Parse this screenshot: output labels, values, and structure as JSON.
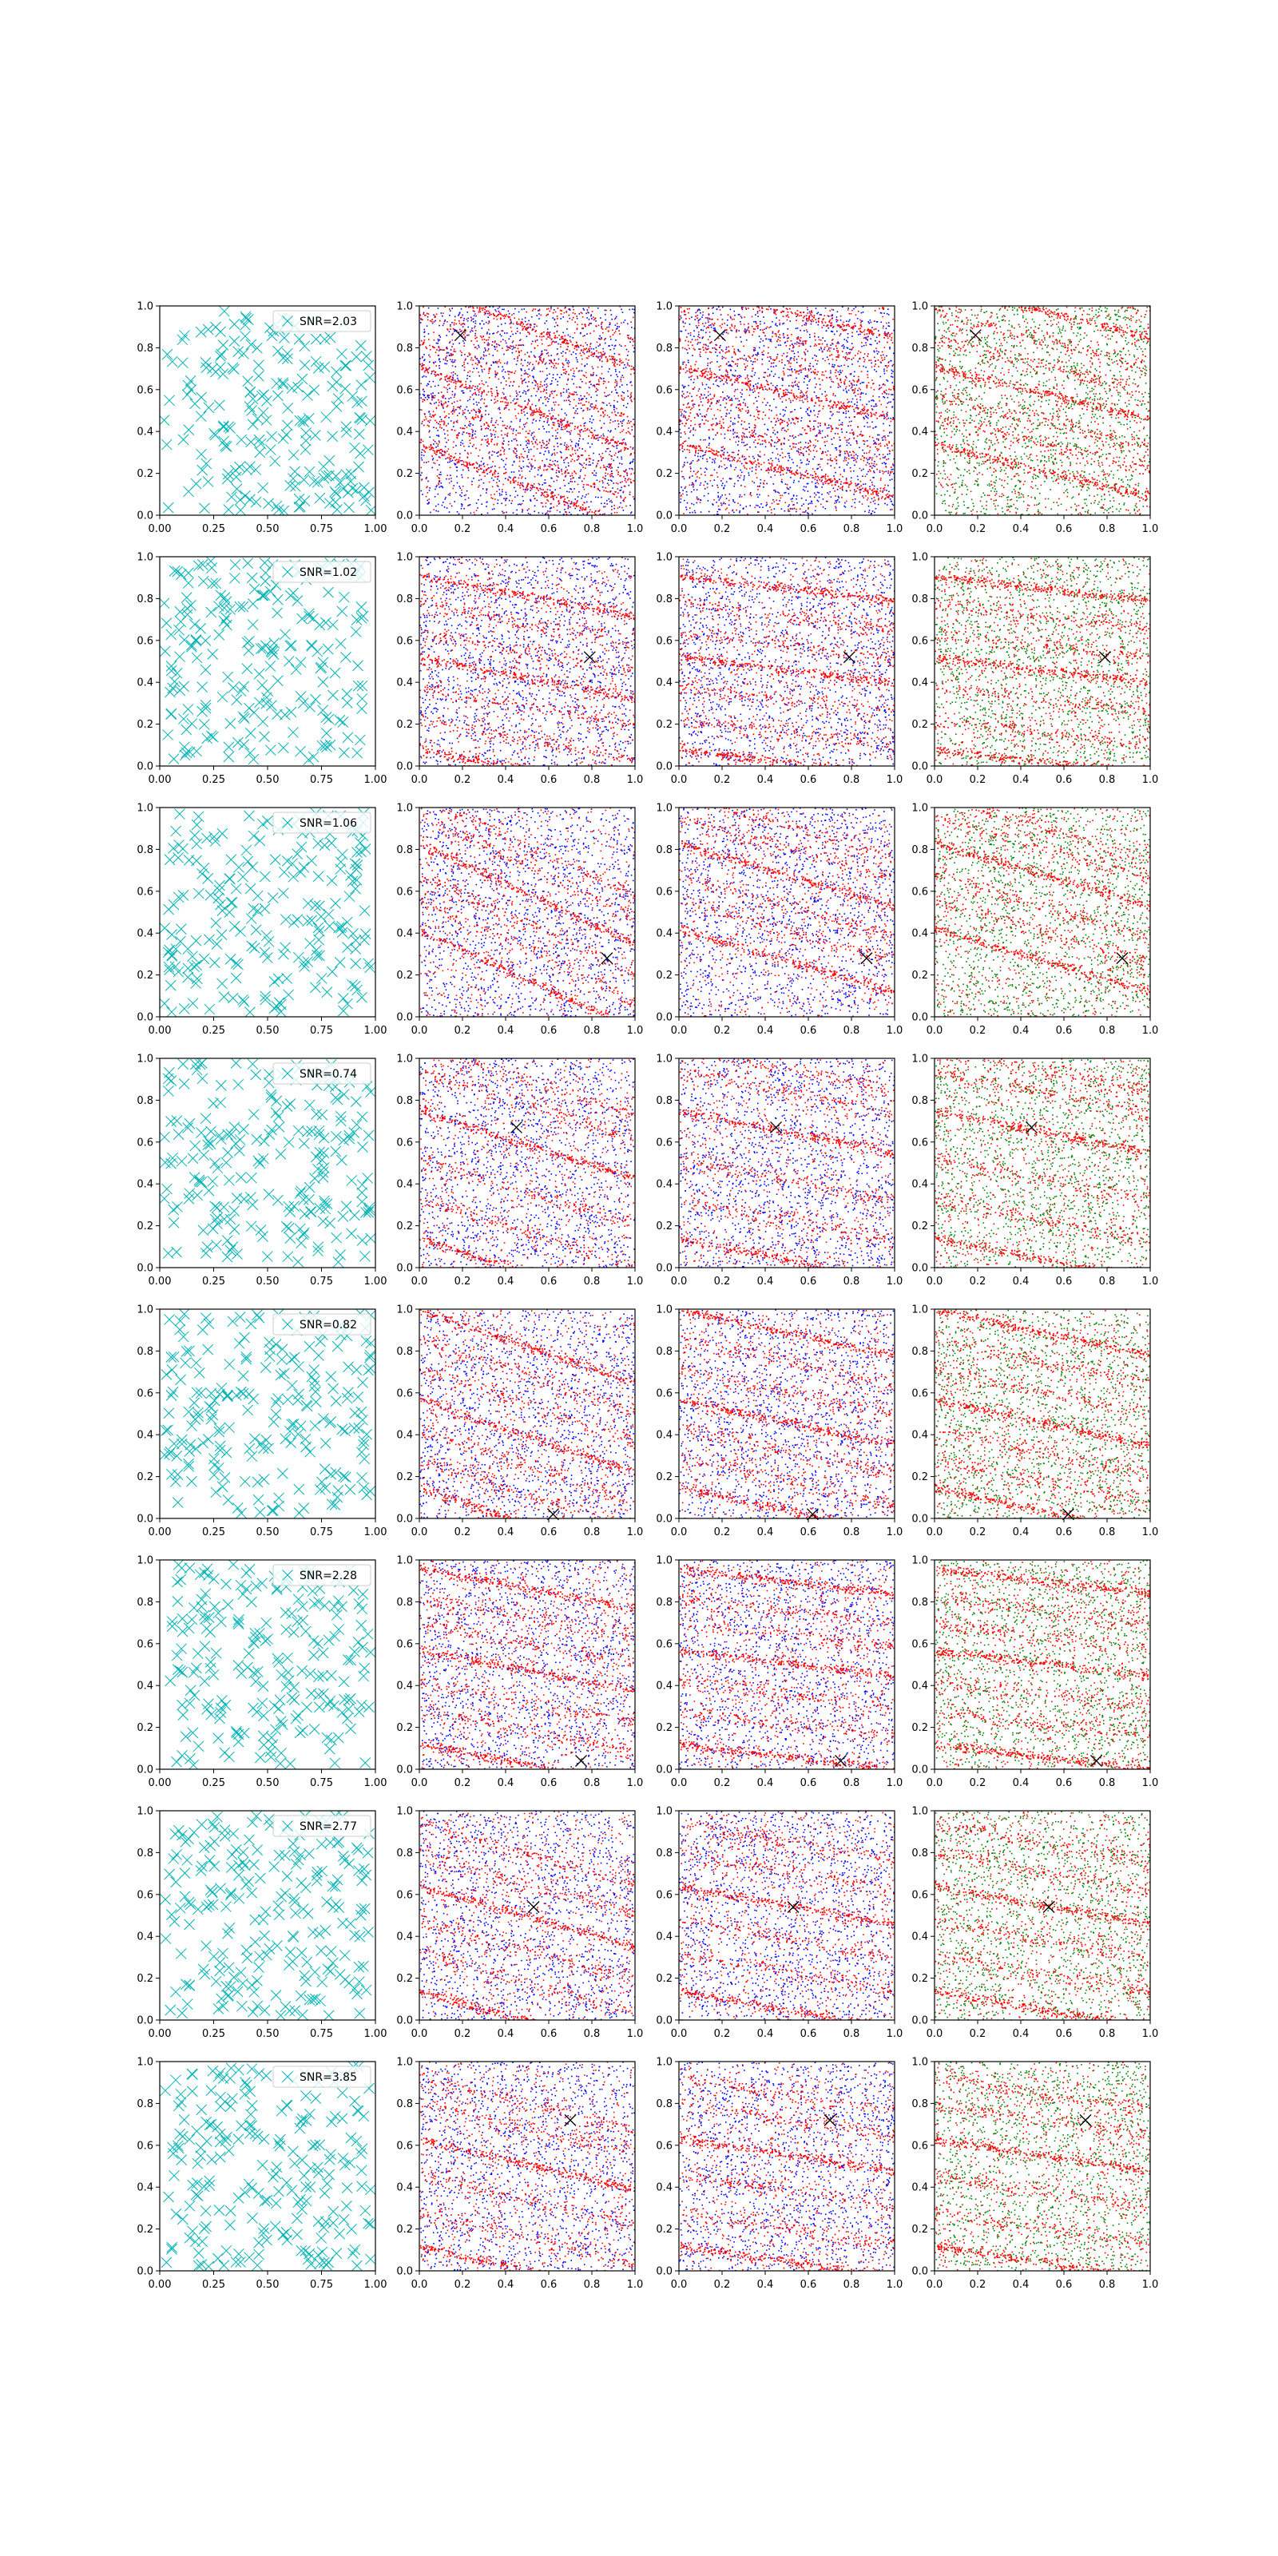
{
  "figure": {
    "rows": 8,
    "cols": 4
  },
  "colors": {
    "markers": "#00b3b3",
    "signal": "#ff0000",
    "noise_b": "#0000ff",
    "noise_g": "#008000",
    "true_marker": "#000000"
  },
  "chart_data": {
    "type": "scatter",
    "grid": false,
    "xlim": [
      0,
      1
    ],
    "ylim": [
      0,
      1
    ],
    "col0_xticks": [
      "0.00",
      "0.25",
      "0.50",
      "0.75",
      "1.00"
    ],
    "col0_yticks": [
      "0.0",
      "0.2",
      "0.4",
      "0.6",
      "0.8",
      "1.0"
    ],
    "xticks": [
      "0.0",
      "0.2",
      "0.4",
      "0.6",
      "0.8",
      "1.0"
    ],
    "yticks": [
      "0.0",
      "0.2",
      "0.4",
      "0.6",
      "0.8",
      "1.0"
    ],
    "legend_placement": "upper-right",
    "rows": [
      {
        "snr": "SNR=2.03",
        "true_point": [
          0.19,
          0.86
        ],
        "band_slope": -0.25,
        "band_intercepts": [
          0.34,
          0.47,
          0.58,
          0.71,
          0.84,
          0.97,
          1.1,
          1.23
        ]
      },
      {
        "snr": "SNR=1.02",
        "true_point": [
          0.79,
          0.52
        ],
        "band_slope": -0.12,
        "band_intercepts": [
          0.08,
          0.22,
          0.38,
          0.52,
          0.64,
          0.78,
          0.91
        ]
      },
      {
        "snr": "SNR=1.06",
        "true_point": [
          0.87,
          0.28
        ],
        "band_slope": -0.3,
        "band_intercepts": [
          0.42,
          0.56,
          0.68,
          0.83,
          0.96,
          1.06
        ]
      },
      {
        "snr": "SNR=0.74",
        "true_point": [
          0.45,
          0.67
        ],
        "band_slope": -0.2,
        "band_intercepts": [
          0.14,
          0.33,
          0.52,
          0.75,
          0.94,
          1.05
        ]
      },
      {
        "snr": "SNR=0.82",
        "true_point": [
          0.62,
          0.02
        ],
        "band_slope": -0.22,
        "band_intercepts": [
          0.15,
          0.29,
          0.43,
          0.57,
          0.72,
          0.86,
          1.0
        ]
      },
      {
        "snr": "SNR=2.28",
        "true_point": [
          0.75,
          0.04
        ],
        "band_slope": -0.12,
        "band_intercepts": [
          0.12,
          0.28,
          0.42,
          0.57,
          0.7,
          0.82,
          0.96
        ]
      },
      {
        "snr": "SNR=2.77",
        "true_point": [
          0.53,
          0.54
        ],
        "band_slope": -0.18,
        "band_intercepts": [
          0.14,
          0.32,
          0.48,
          0.64,
          0.8,
          0.94
        ]
      },
      {
        "snr": "SNR=3.85",
        "true_point": [
          0.7,
          0.72
        ],
        "band_slope": -0.15,
        "band_intercepts": [
          0.12,
          0.28,
          0.46,
          0.63,
          0.8,
          0.92
        ]
      }
    ]
  }
}
